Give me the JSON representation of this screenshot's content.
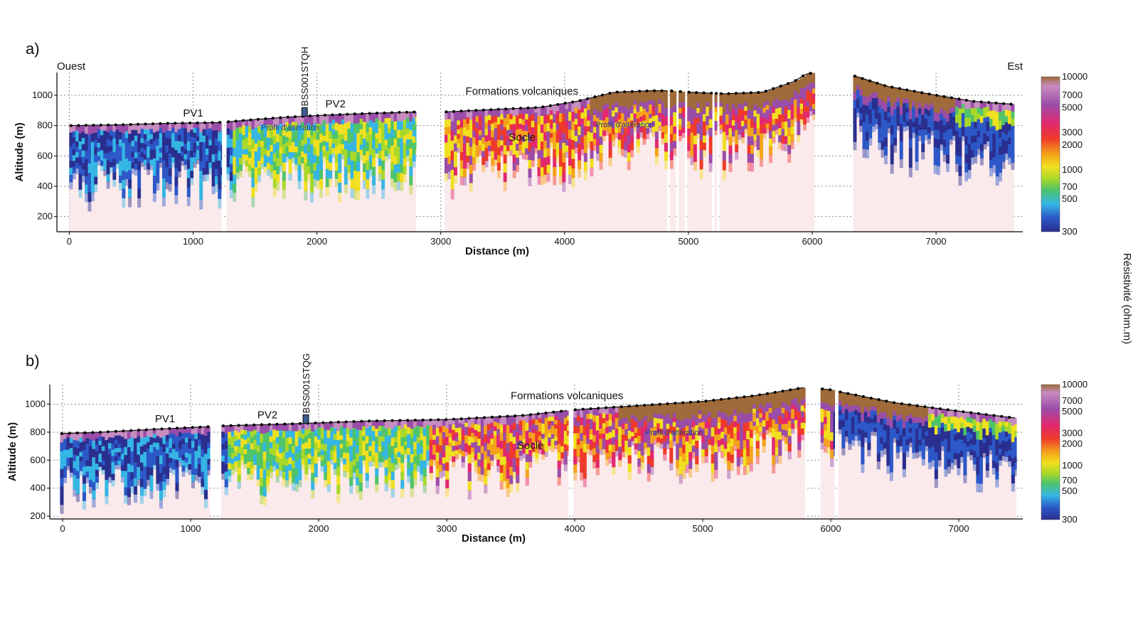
{
  "colors": {
    "resistivity_scale": [
      "#2a2f8f",
      "#2c58c8",
      "#35b6e4",
      "#4fc46a",
      "#a8d82a",
      "#f0e020",
      "#f4a31a",
      "#ef3a2a",
      "#e2286f",
      "#9a4da8",
      "#c78cc0",
      "#a06a3a"
    ],
    "profile_line": "#111111",
    "masked_region": "#fbeaec"
  },
  "colorbar": {
    "label": "Résistivité (ohm.m)",
    "ticks": [
      "10000",
      "7000",
      "5000",
      "3000",
      "2000",
      "1000",
      "700",
      "500",
      "300"
    ]
  },
  "chart_data": [
    {
      "type": "heatmap",
      "panel_label": "a)",
      "title": "",
      "xlabel": "Distance (m)",
      "ylabel": "Altitude (m)",
      "xlim": [
        -100,
        7700
      ],
      "ylim": [
        100,
        1150
      ],
      "x_ticks": [
        "0",
        "1000",
        "2000",
        "3000",
        "4000",
        "5000",
        "6000",
        "7000"
      ],
      "y_ticks": [
        "200",
        "400",
        "600",
        "800",
        "1000"
      ],
      "grid": true,
      "left_label": "Ouest",
      "right_label": "Est",
      "borehole": "BSS001STQH",
      "annotations": [
        "PV1",
        "PV2",
        "Profil d'altération",
        "Formations volcaniques",
        "Socle",
        "Profil d'altération"
      ],
      "segments": [
        [
          0,
          1230
        ],
        [
          1270,
          2800
        ],
        [
          3030,
          4830
        ],
        [
          4850,
          4900
        ],
        [
          4920,
          4970
        ],
        [
          4990,
          5190
        ],
        [
          5210,
          5230
        ],
        [
          5250,
          6020
        ],
        [
          6330,
          7630
        ]
      ],
      "topography": {
        "x": [
          0,
          400,
          800,
          1200,
          1500,
          1800,
          2100,
          2400,
          2800,
          3030,
          3400,
          3800,
          4100,
          4400,
          4700,
          4850,
          5000,
          5300,
          5600,
          5850,
          5950,
          6020,
          6330,
          6600,
          7000,
          7300,
          7630
        ],
        "y": [
          800,
          805,
          815,
          820,
          840,
          858,
          870,
          880,
          890,
          890,
          905,
          920,
          960,
          1020,
          1030,
          1030,
          1020,
          1010,
          1020,
          1090,
          1140,
          1150,
          1130,
          1060,
          1000,
          960,
          940
        ]
      }
    },
    {
      "type": "heatmap",
      "panel_label": "b)",
      "title": "",
      "xlabel": "Distance (m)",
      "ylabel": "Altitude (m)",
      "xlim": [
        -100,
        7500
      ],
      "ylim": [
        180,
        1140
      ],
      "x_ticks": [
        "0",
        "1000",
        "2000",
        "3000",
        "4000",
        "5000",
        "6000",
        "7000"
      ],
      "y_ticks": [
        "200",
        "400",
        "600",
        "800",
        "1000"
      ],
      "grid": true,
      "borehole": "BSS001STQG",
      "annotations": [
        "PV1",
        "PV2",
        "Formations volcaniques",
        "Socle",
        "Profil d'altération"
      ],
      "segments": [
        [
          -20,
          1150
        ],
        [
          1240,
          3950
        ],
        [
          3990,
          5800
        ],
        [
          5920,
          6030
        ],
        [
          6060,
          7450
        ]
      ],
      "topography": {
        "x": [
          -20,
          300,
          700,
          1150,
          1240,
          1800,
          2400,
          3000,
          3600,
          4000,
          4500,
          5000,
          5400,
          5800,
          5920,
          6030,
          6060,
          6500,
          7000,
          7450
        ],
        "y": [
          790,
          800,
          820,
          840,
          845,
          860,
          880,
          890,
          920,
          960,
          990,
          1020,
          1060,
          1120,
          1110,
          1100,
          1090,
          1010,
          950,
          900
        ]
      }
    }
  ]
}
